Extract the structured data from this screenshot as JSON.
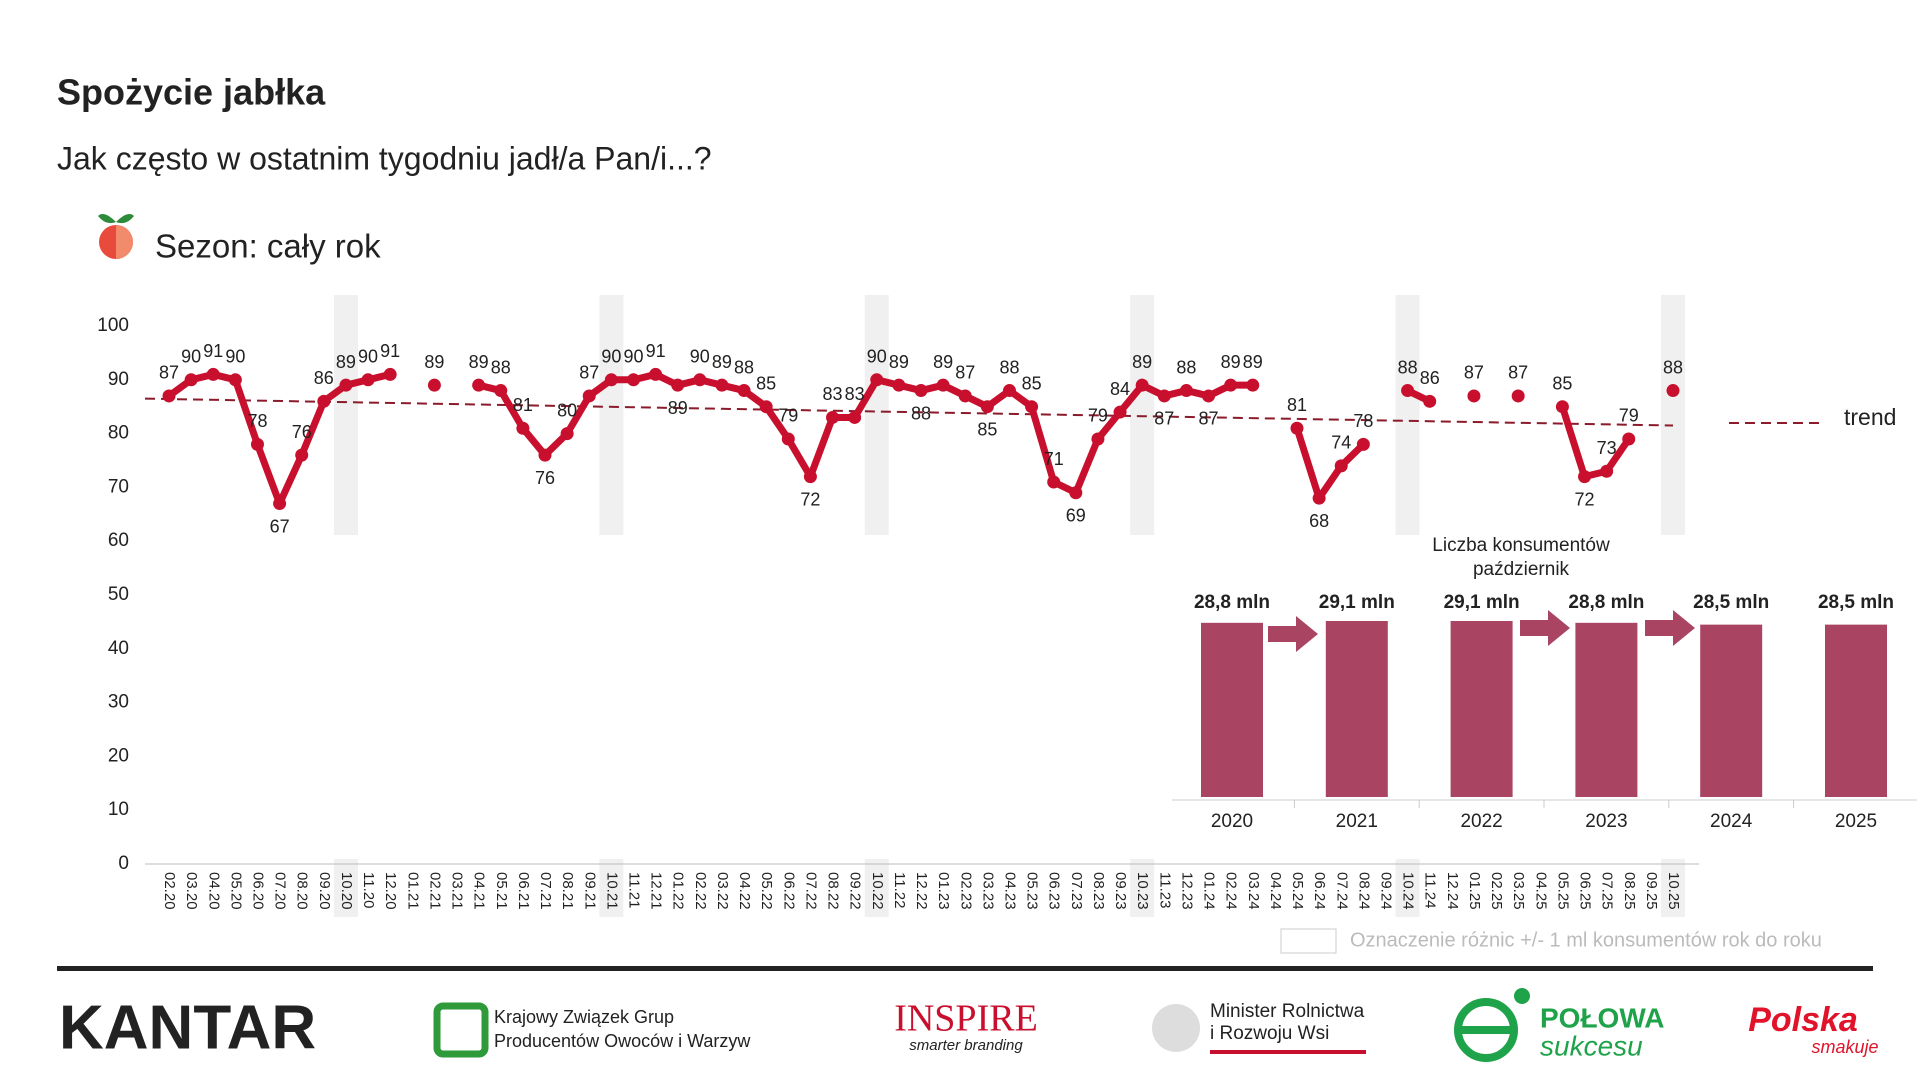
{
  "header": {
    "title": "Spożycie jabłka",
    "subtitle": "Jak często w ostatnim tygodniu jadł/a Pan/i...?",
    "season": "Sezon: cały rok"
  },
  "chart_data": [
    {
      "type": "line",
      "categories": [
        "02.20",
        "03.20",
        "04.20",
        "05.20",
        "06.20",
        "07.20",
        "08.20",
        "09.20",
        "10.20",
        "11.20",
        "12.20",
        "01.21",
        "02.21",
        "03.21",
        "04.21",
        "05.21",
        "06.21",
        "07.21",
        "08.21",
        "09.21",
        "10.21",
        "11.21",
        "12.21",
        "01.22",
        "02.22",
        "03.22",
        "04.22",
        "05.22",
        "06.22",
        "07.22",
        "08.22",
        "09.22",
        "10.22",
        "11.22",
        "12.22",
        "01.23",
        "02.23",
        "03.23",
        "04.23",
        "05.23",
        "06.23",
        "07.23",
        "08.23",
        "09.23",
        "10.23",
        "11.23",
        "12.23",
        "01.24",
        "02.24",
        "03.24",
        "04.24",
        "05.24",
        "06.24",
        "07.24",
        "08.24",
        "09.24",
        "10.24",
        "11.24",
        "12.24",
        "01.25",
        "02.25",
        "03.25",
        "04.25",
        "05.25",
        "06.25",
        "07.25",
        "08.25",
        "09.25",
        "10.25"
      ],
      "series": [
        {
          "color": "#c8102e",
          "values": [
            87,
            90,
            91,
            90,
            78,
            67,
            76,
            86,
            89,
            90,
            91,
            null,
            89,
            null,
            89,
            88,
            81,
            76,
            80,
            87,
            90,
            90,
            91,
            89,
            90,
            89,
            88,
            85,
            79,
            72,
            83,
            83,
            90,
            89,
            88,
            89,
            87,
            85,
            88,
            85,
            71,
            69,
            79,
            84,
            89,
            87,
            88,
            87,
            89,
            89,
            null,
            81,
            68,
            74,
            78,
            null,
            88,
            86,
            null,
            87,
            null,
            87,
            null,
            85,
            72,
            73,
            79,
            null,
            88
          ]
        }
      ],
      "trend": {
        "name": "trend",
        "color": "#8b1a2b",
        "start": 86.5,
        "end": 81.5
      },
      "highlight": [
        "10.20",
        "10.21",
        "10.22",
        "10.23",
        "10.24",
        "10.25"
      ],
      "highlight_legend": "Oznaczenie różnic +/- 1 ml konsumentów rok do roku",
      "ylim": [
        0,
        100
      ],
      "yticks": [
        0,
        10,
        20,
        30,
        40,
        50,
        60,
        70,
        80,
        90,
        100
      ],
      "grid": false
    },
    {
      "type": "bar",
      "title": [
        "Liczba konsumentów",
        "październik"
      ],
      "categories": [
        "2020",
        "2021",
        "2022",
        "2023",
        "2024",
        "2025"
      ],
      "values": [
        28.8,
        29.1,
        29.1,
        28.8,
        28.5,
        28.5
      ],
      "value_labels": [
        "28,8 mln",
        "29,1 mln",
        "29,1 mln",
        "28,8 mln",
        "28,5 mln",
        "28,5 mln"
      ],
      "color": "#a94563"
    }
  ],
  "footer": {
    "kantar": "KANTAR",
    "kzgp": [
      "Krajowy Związek Grup",
      "Producentów Owoców i Warzyw"
    ],
    "inspire": "INSPIRE",
    "inspire_sub": "smarter branding",
    "minister": [
      "Minister Rolnictwa",
      "i Rozwoju Wsi"
    ],
    "polowa": [
      "POŁOWA",
      "sukcesu"
    ],
    "polska": [
      "Polska",
      "smakuje"
    ]
  }
}
